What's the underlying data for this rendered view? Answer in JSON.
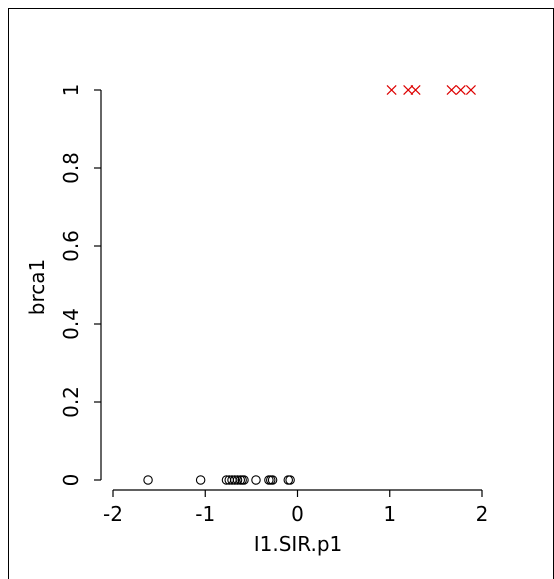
{
  "chart_data": {
    "type": "scatter",
    "xlabel": "I1.SIR.p1",
    "ylabel": "brca1",
    "xlim": [
      -2,
      2
    ],
    "ylim": [
      0,
      1
    ],
    "x_ticks": [
      "-2",
      "-1",
      "0",
      "1",
      "2"
    ],
    "y_ticks": [
      "0",
      "0.2",
      "0.4",
      "0.6",
      "0.8",
      "1"
    ],
    "series": [
      {
        "marker": "open-circle",
        "color": "#000000",
        "points": [
          [
            -1.62,
            0
          ],
          [
            -1.05,
            0
          ],
          [
            -0.77,
            0
          ],
          [
            -0.74,
            0
          ],
          [
            -0.71,
            0
          ],
          [
            -0.68,
            0
          ],
          [
            -0.65,
            0
          ],
          [
            -0.62,
            0
          ],
          [
            -0.6,
            0
          ],
          [
            -0.58,
            0
          ],
          [
            -0.45,
            0
          ],
          [
            -0.31,
            0
          ],
          [
            -0.29,
            0
          ],
          [
            -0.27,
            0
          ],
          [
            -0.1,
            0
          ],
          [
            -0.08,
            0
          ]
        ]
      },
      {
        "marker": "cross",
        "color": "#dd0000",
        "points": [
          [
            1.02,
            1
          ],
          [
            1.2,
            1
          ],
          [
            1.28,
            1
          ],
          [
            1.67,
            1
          ],
          [
            1.77,
            1
          ],
          [
            1.88,
            1
          ]
        ]
      }
    ]
  }
}
